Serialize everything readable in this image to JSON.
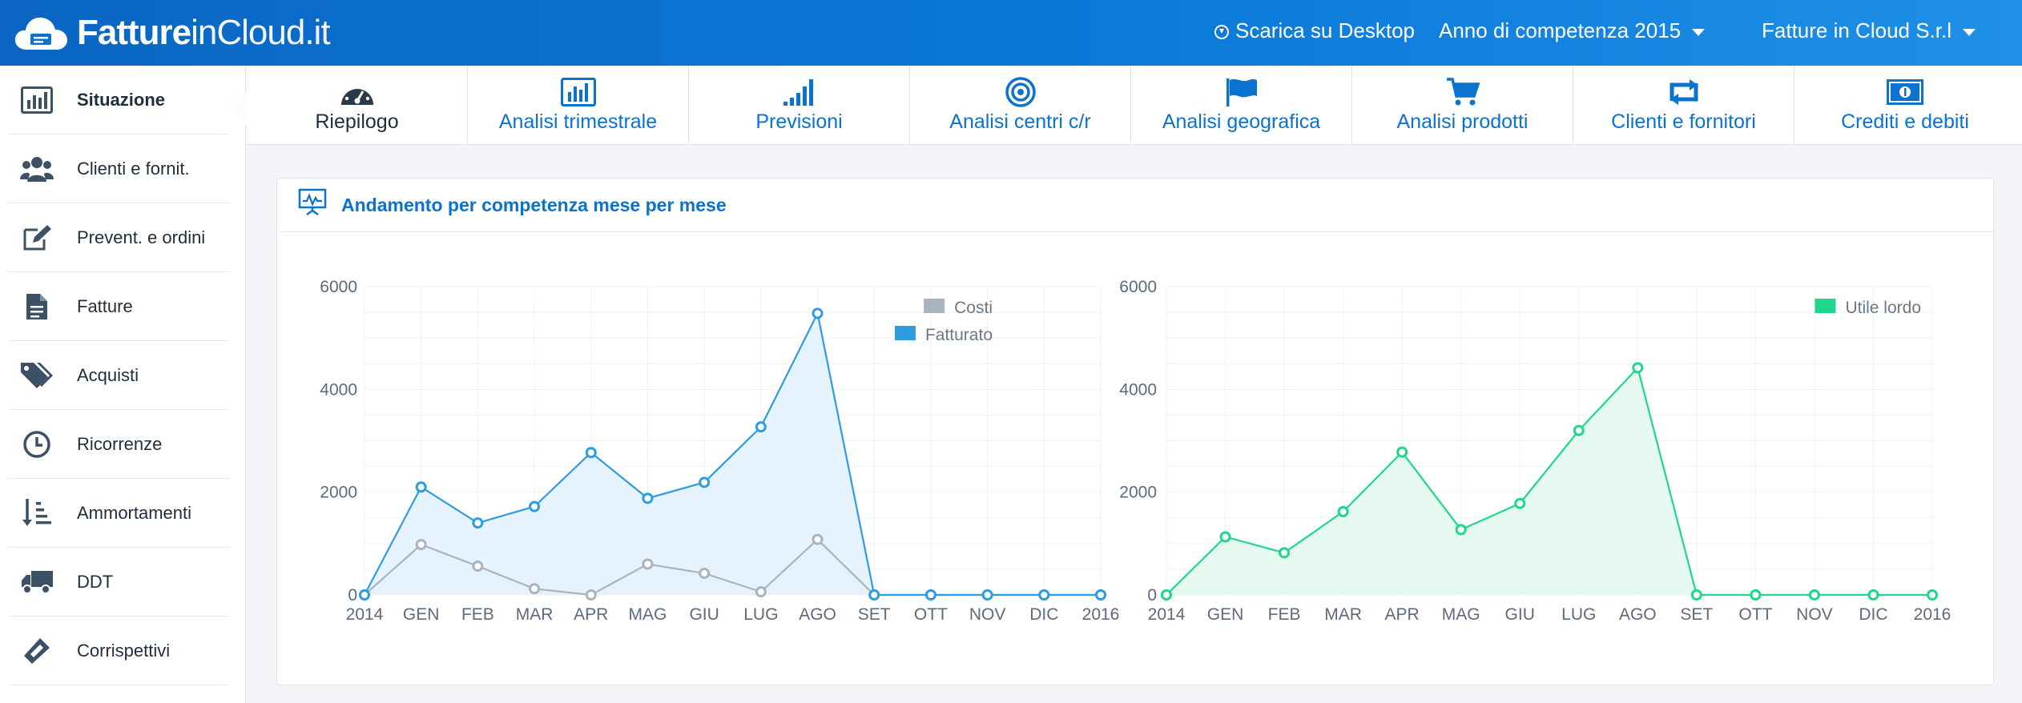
{
  "header": {
    "logo_bold": "Fatture",
    "logo_light": "inCloud.it",
    "download": "Scarica su Desktop",
    "year": "Anno di competenza 2015",
    "company": "Fatture in Cloud S.r.l",
    "brand_color": "#0a72cf"
  },
  "sidebar": {
    "items": [
      {
        "label": "Situazione",
        "icon": "bar-chart-icon"
      },
      {
        "label": "Clienti e fornit.",
        "icon": "users-icon"
      },
      {
        "label": "Prevent. e ordini",
        "icon": "edit-icon"
      },
      {
        "label": "Fatture",
        "icon": "document-icon"
      },
      {
        "label": "Acquisti",
        "icon": "tags-icon"
      },
      {
        "label": "Ricorrenze",
        "icon": "clock-icon"
      },
      {
        "label": "Ammortamenti",
        "icon": "sort-icon"
      },
      {
        "label": "DDT",
        "icon": "truck-icon"
      },
      {
        "label": "Corrispettivi",
        "icon": "ticket-icon"
      }
    ]
  },
  "tabs": [
    {
      "label": "Riepilogo",
      "icon": "dashboard-icon"
    },
    {
      "label": "Analisi trimestrale",
      "icon": "bar-chart-icon"
    },
    {
      "label": "Previsioni",
      "icon": "signal-icon"
    },
    {
      "label": "Analisi centri c/r",
      "icon": "target-icon"
    },
    {
      "label": "Analisi geografica",
      "icon": "flag-icon"
    },
    {
      "label": "Analisi prodotti",
      "icon": "cart-icon"
    },
    {
      "label": "Clienti e fornitori",
      "icon": "retweet-icon"
    },
    {
      "label": "Crediti e debiti",
      "icon": "money-icon"
    }
  ],
  "panel": {
    "title": "Andamento per competenza mese per mese",
    "icon": "presentation-chart-icon"
  },
  "chart_data": [
    {
      "type": "line",
      "categories": [
        "2014",
        "GEN",
        "FEB",
        "MAR",
        "APR",
        "MAG",
        "GIU",
        "LUG",
        "AGO",
        "SET",
        "OTT",
        "NOV",
        "DIC",
        "2016"
      ],
      "ylim": [
        0,
        6000
      ],
      "yticks": [
        0,
        2000,
        4000,
        6000
      ],
      "grid": true,
      "legend": "top-right",
      "title": "",
      "xlabel": "",
      "ylabel": "",
      "series": [
        {
          "name": "Costi",
          "color": "#aab3c0",
          "fill": "#eef0f3",
          "values": [
            0,
            980,
            560,
            120,
            0,
            600,
            420,
            60,
            1080,
            0,
            0,
            0,
            0,
            0
          ]
        },
        {
          "name": "Fatturato",
          "color": "#2f9be0",
          "fill": "#e3f1fb",
          "values": [
            0,
            2100,
            1400,
            1720,
            2770,
            1880,
            2190,
            3270,
            5480,
            0,
            0,
            0,
            0,
            0
          ]
        }
      ]
    },
    {
      "type": "line",
      "categories": [
        "2014",
        "GEN",
        "FEB",
        "MAR",
        "APR",
        "MAG",
        "GIU",
        "LUG",
        "AGO",
        "SET",
        "OTT",
        "NOV",
        "DIC",
        "2016"
      ],
      "ylim": [
        0,
        6000
      ],
      "yticks": [
        0,
        2000,
        4000,
        6000
      ],
      "grid": true,
      "legend": "top-right",
      "title": "",
      "xlabel": "",
      "ylabel": "",
      "series": [
        {
          "name": "Utile lordo",
          "color": "#1fd68a",
          "fill": "#e1f8ee",
          "values": [
            0,
            1130,
            820,
            1620,
            2780,
            1270,
            1780,
            3200,
            4420,
            0,
            0,
            0,
            0,
            0
          ]
        }
      ]
    }
  ]
}
